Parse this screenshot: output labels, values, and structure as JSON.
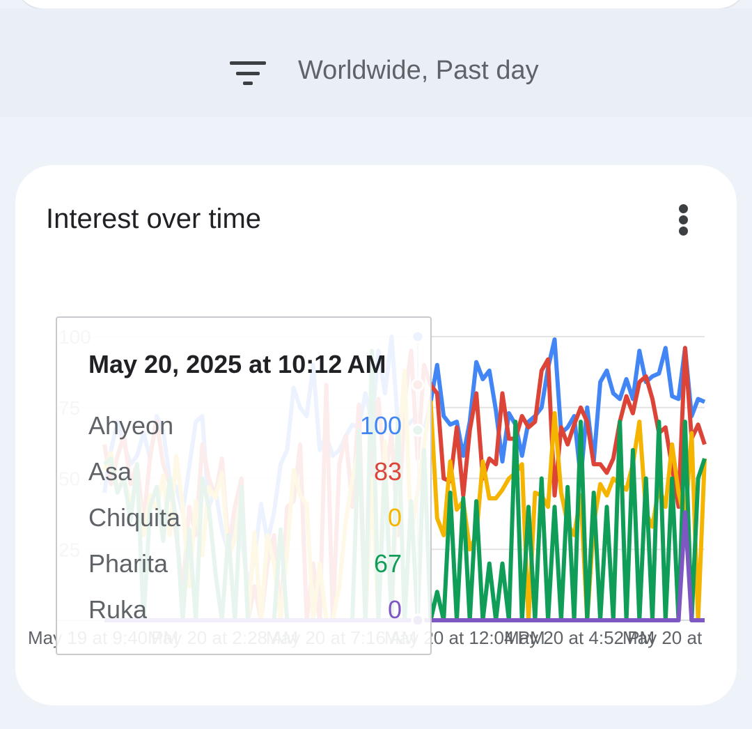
{
  "filter": {
    "label": "Worldwide, Past day",
    "icon": "filter-icon"
  },
  "card": {
    "title": "Interest over time",
    "menu_icon": "more-vert-icon"
  },
  "tooltip": {
    "date": "May 20, 2025 at 10:12 AM",
    "rows": [
      {
        "name": "Ahyeon",
        "value": "100",
        "color": "#4285f4"
      },
      {
        "name": "Asa",
        "value": "83",
        "color": "#db4437"
      },
      {
        "name": "Chiquita",
        "value": "0",
        "color": "#f4b400"
      },
      {
        "name": "Pharita",
        "value": "67",
        "color": "#0f9d58"
      },
      {
        "name": "Ruka",
        "value": "0",
        "color": "#7e57c2"
      }
    ]
  },
  "chart_data": {
    "type": "line",
    "ylim": [
      0,
      100
    ],
    "y_ticks": [
      "100",
      "75",
      "50",
      "25"
    ],
    "x_tick_labels": [
      "May 19 at 9:40 PM",
      "May 20 at 2:28 AM",
      "May 20 at 7:16 AM",
      "May 20 at 12:04 PM",
      "May 20 at 4:52 PM",
      "May 20 at"
    ],
    "grid": true,
    "series": [
      {
        "name": "Ahyeon",
        "color": "#4285f4",
        "values": [
          45,
          60,
          70,
          62,
          55,
          58,
          66,
          57,
          72,
          67,
          50,
          47,
          38,
          54,
          70,
          72,
          40,
          46,
          32,
          24,
          36,
          30,
          12,
          22,
          41,
          28,
          38,
          55,
          60,
          82,
          75,
          72,
          90,
          60,
          65,
          58,
          60,
          65,
          69,
          68,
          80,
          70,
          95,
          80,
          100,
          69,
          68,
          70,
          72,
          66,
          77,
          90,
          72,
          69,
          70,
          58,
          70,
          91,
          85,
          88,
          74,
          56,
          73,
          69,
          58,
          70,
          72,
          75,
          89,
          99,
          66,
          68,
          72,
          50,
          75,
          56,
          84,
          88,
          80,
          78,
          85,
          78,
          95,
          84,
          86,
          87,
          96,
          79,
          78,
          96,
          72,
          78,
          77
        ]
      },
      {
        "name": "Asa",
        "color": "#db4437",
        "values": [
          62,
          48,
          58,
          65,
          48,
          55,
          34,
          58,
          70,
          55,
          48,
          30,
          10,
          40,
          30,
          62,
          50,
          44,
          57,
          26,
          40,
          50,
          0,
          12,
          0,
          20,
          30,
          0,
          40,
          42,
          62,
          0,
          20,
          0,
          83,
          0,
          55,
          65,
          40,
          76,
          0,
          62,
          78,
          50,
          66,
          30,
          77,
          95,
          57,
          90,
          83,
          80,
          50,
          49,
          68,
          44,
          67,
          80,
          50,
          57,
          55,
          80,
          64,
          64,
          72,
          68,
          70,
          88,
          92,
          44,
          68,
          62,
          69,
          75,
          70,
          55,
          55,
          52,
          57,
          70,
          79,
          73,
          84,
          86,
          78,
          66,
          68,
          54,
          40,
          96,
          64,
          69,
          62
        ]
      },
      {
        "name": "Chiquita",
        "color": "#f4b400",
        "values": [
          53,
          59,
          46,
          50,
          41,
          48,
          30,
          44,
          39,
          51,
          30,
          58,
          40,
          12,
          42,
          23,
          47,
          43,
          52,
          22,
          29,
          45,
          0,
          31,
          0,
          30,
          20,
          0,
          24,
          53,
          44,
          41,
          0,
          20,
          0,
          0,
          12,
          35,
          50,
          60,
          0,
          50,
          0,
          63,
          0,
          55,
          88,
          30,
          45,
          62,
          77,
          36,
          30,
          56,
          39,
          42,
          25,
          30,
          56,
          43,
          43,
          46,
          50,
          52,
          55,
          0,
          45,
          44,
          40,
          73,
          45,
          34,
          30,
          44,
          0,
          34,
          48,
          44,
          50,
          48,
          46,
          55,
          70,
          38,
          33,
          47,
          40,
          62,
          45,
          35,
          66,
          0,
          57
        ]
      },
      {
        "name": "Pharita",
        "color": "#0f9d58",
        "values": [
          55,
          57,
          45,
          50,
          35,
          55,
          0,
          40,
          47,
          28,
          50,
          35,
          0,
          32,
          0,
          50,
          40,
          17,
          0,
          30,
          0,
          47,
          0,
          0,
          0,
          0,
          0,
          32,
          0,
          0,
          0,
          0,
          0,
          0,
          0,
          0,
          0,
          0,
          0,
          67,
          0,
          95,
          0,
          55,
          0,
          72,
          0,
          42,
          0,
          60,
          0,
          10,
          0,
          45,
          0,
          43,
          0,
          42,
          0,
          20,
          0,
          20,
          0,
          70,
          0,
          40,
          0,
          50,
          0,
          40,
          0,
          47,
          0,
          70,
          0,
          45,
          0,
          40,
          0,
          70,
          0,
          60,
          0,
          50,
          0,
          70,
          0,
          50,
          0,
          70,
          0,
          50,
          57
        ]
      },
      {
        "name": "Ruka",
        "color": "#7e57c2",
        "values": [
          0,
          0,
          0,
          0,
          0,
          0,
          0,
          0,
          0,
          0,
          0,
          0,
          0,
          0,
          0,
          0,
          0,
          0,
          0,
          0,
          0,
          0,
          0,
          0,
          0,
          0,
          0,
          0,
          0,
          0,
          0,
          0,
          0,
          0,
          0,
          0,
          0,
          0,
          0,
          0,
          0,
          0,
          0,
          0,
          0,
          0,
          0,
          0,
          0,
          0,
          0,
          0,
          0,
          0,
          0,
          0,
          0,
          0,
          0,
          0,
          0,
          0,
          0,
          0,
          0,
          0,
          0,
          0,
          0,
          0,
          0,
          0,
          0,
          0,
          0,
          0,
          0,
          0,
          0,
          0,
          0,
          0,
          0,
          0,
          0,
          0,
          0,
          0,
          0,
          38,
          0,
          0,
          0
        ]
      }
    ]
  }
}
